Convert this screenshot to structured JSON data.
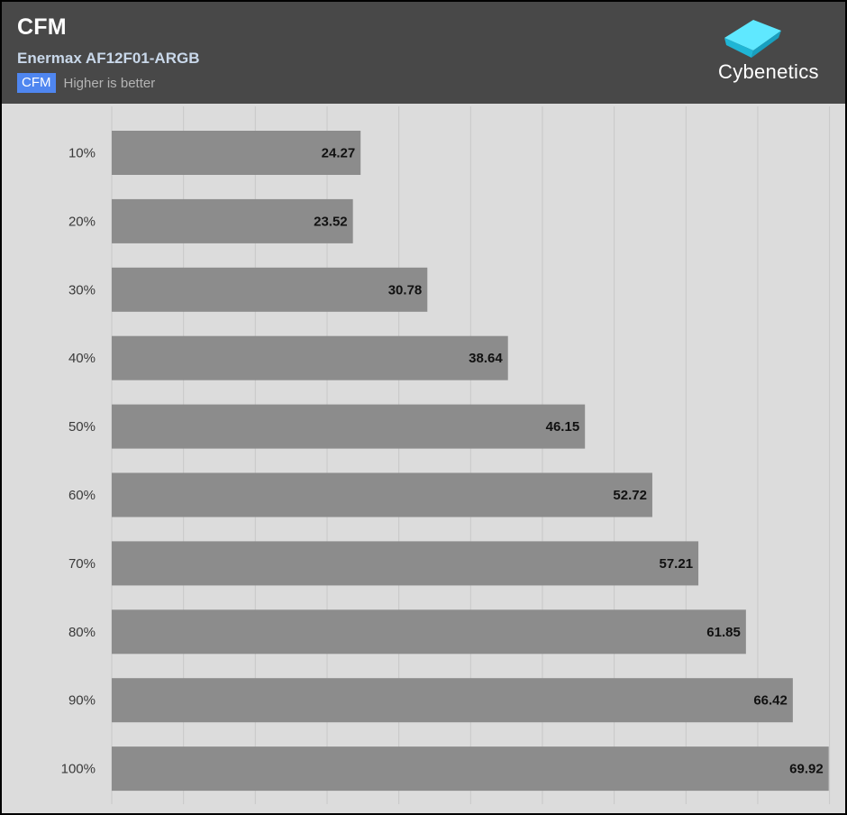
{
  "header": {
    "title": "CFM",
    "subtitle": "Enermax AF12F01-ARGB",
    "legend_label": "CFM",
    "legend_note": "Higher is better",
    "brand": "Cybenetics"
  },
  "colors": {
    "header_bg": "#484848",
    "plot_bg": "#dcdcdc",
    "bar": "#8c8c8c",
    "legend_swatch": "#4f86f0",
    "logo_accent": "#29d4f0"
  },
  "chart_data": {
    "type": "bar",
    "orientation": "horizontal",
    "categories": [
      "10%",
      "20%",
      "30%",
      "40%",
      "50%",
      "60%",
      "70%",
      "80%",
      "90%",
      "100%"
    ],
    "series": [
      {
        "name": "CFM",
        "values": [
          24.27,
          23.52,
          30.78,
          38.64,
          46.15,
          52.72,
          57.21,
          61.85,
          66.42,
          69.92
        ]
      }
    ],
    "xlim": [
      0,
      70
    ],
    "grid": true,
    "legend": "top-left"
  }
}
